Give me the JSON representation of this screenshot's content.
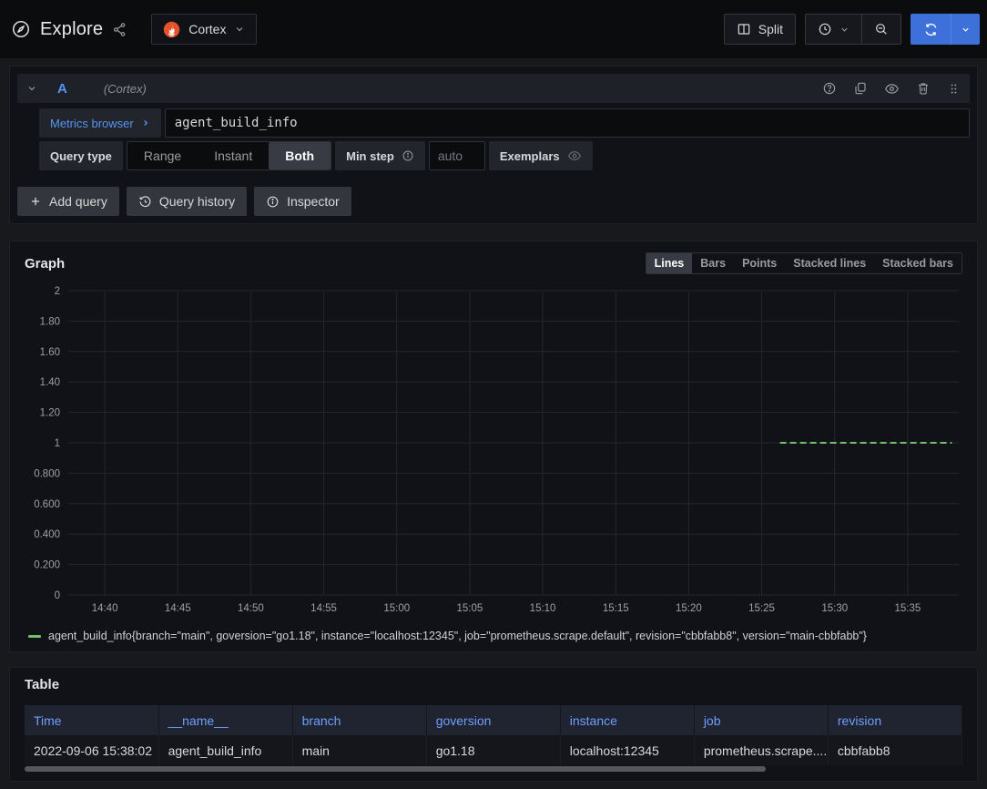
{
  "colors": {
    "accent_blue": "#3d71d9",
    "link_blue": "#5794f2",
    "table_header_blue": "#6e9fff",
    "series_green": "#73bf69",
    "prometheus_orange": "#e6522c"
  },
  "topbar": {
    "title": "Explore",
    "datasource_name": "Cortex",
    "split_label": "Split"
  },
  "query_editor": {
    "ref_id": "A",
    "datasource_hint": "(Cortex)",
    "metrics_browser_label": "Metrics browser",
    "query_expression": "agent_build_info",
    "query_type": {
      "label": "Query type",
      "options": [
        "Range",
        "Instant",
        "Both"
      ],
      "selected": "Both"
    },
    "min_step": {
      "label": "Min step",
      "placeholder": "auto"
    },
    "exemplars_label": "Exemplars",
    "actions": {
      "add_query": "Add query",
      "query_history": "Query history",
      "inspector": "Inspector"
    }
  },
  "graph_panel": {
    "title": "Graph",
    "display_modes": [
      "Lines",
      "Bars",
      "Points",
      "Stacked lines",
      "Stacked bars"
    ],
    "selected_mode": "Lines"
  },
  "chart_data": {
    "type": "line",
    "title": "Graph",
    "grid": true,
    "legend_position": "bottom",
    "ylim": [
      0,
      2
    ],
    "y_ticks": [
      {
        "v": 2,
        "label": "2"
      },
      {
        "v": 1.8,
        "label": "1.80"
      },
      {
        "v": 1.6,
        "label": "1.60"
      },
      {
        "v": 1.4,
        "label": "1.40"
      },
      {
        "v": 1.2,
        "label": "1.20"
      },
      {
        "v": 1,
        "label": "1"
      },
      {
        "v": 0.8,
        "label": "0.800"
      },
      {
        "v": 0.6,
        "label": "0.600"
      },
      {
        "v": 0.4,
        "label": "0.400"
      },
      {
        "v": 0.2,
        "label": "0.200"
      },
      {
        "v": 0,
        "label": "0"
      }
    ],
    "x_domain": [
      "14:37:30",
      "15:38:30"
    ],
    "x_ticks": [
      "14:40",
      "14:45",
      "14:50",
      "14:55",
      "15:00",
      "15:05",
      "15:10",
      "15:15",
      "15:20",
      "15:25",
      "15:30",
      "15:35"
    ],
    "series": [
      {
        "name": "agent_build_info{branch=\"main\", goversion=\"go1.18\", instance=\"localhost:12345\", job=\"prometheus.scrape.default\", revision=\"cbbfabb8\", version=\"main-cbbfabb\"}",
        "color": "#73bf69",
        "style": "dashed",
        "points": [
          {
            "t": "15:26:15",
            "v": 1
          },
          {
            "t": "15:38:02",
            "v": 1
          }
        ]
      }
    ]
  },
  "table_panel": {
    "title": "Table",
    "columns": [
      "Time",
      "__name__",
      "branch",
      "goversion",
      "instance",
      "job",
      "revision"
    ],
    "rows": [
      [
        "2022-09-06 15:38:02",
        "agent_build_info",
        "main",
        "go1.18",
        "localhost:12345",
        "prometheus.scrape....",
        "cbbfabb8"
      ]
    ]
  }
}
